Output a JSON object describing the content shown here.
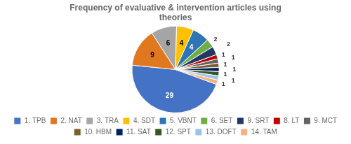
{
  "chart_data": {
    "type": "pie",
    "title": "Frequency of evaluative & intervention articles using\ntheories",
    "categories": [
      "1. TPB",
      "2. NAT",
      "3. TRA",
      "4. SDT",
      "5. VBNT",
      "6. SET",
      "9. SRT",
      "8. LT",
      "9. MCT",
      "10. HBM",
      "11. SAT",
      "12. SPT",
      "13. DOFT",
      "14. TAM"
    ],
    "values": [
      29,
      9,
      6,
      4,
      4,
      2,
      2,
      1,
      1,
      1,
      1,
      1,
      1,
      1
    ],
    "colors": [
      "#4472C4",
      "#E07820",
      "#A5A5A5",
      "#FFC000",
      "#2E75B6",
      "#70AD47",
      "#1F3864",
      "#C00000",
      "#636363",
      "#7B5F2E",
      "#002060",
      "#375623",
      "#9DC3E6",
      "#F4B183"
    ],
    "data_labels": true,
    "legend": "bottom"
  }
}
